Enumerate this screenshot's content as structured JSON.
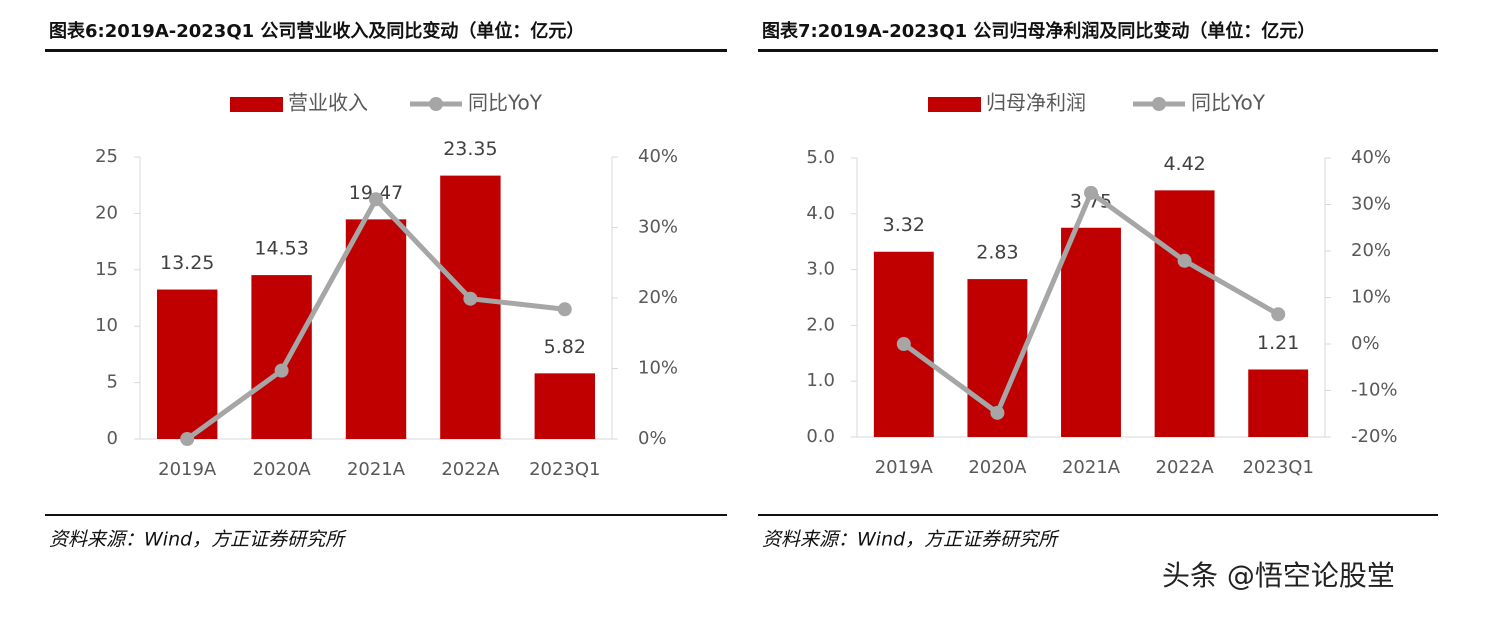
{
  "chart_data": [
    {
      "type": "bar",
      "title": "图表6:2019A-2023Q1 公司营业收入及同比变动（单位：亿元）",
      "source": "资料来源：Wind，方正证券研究所",
      "categories": [
        "2019A",
        "2020A",
        "2021A",
        "2022A",
        "2023Q1"
      ],
      "series": [
        {
          "name": "营业收入",
          "color": "#c00000",
          "values": [
            13.25,
            14.53,
            19.47,
            23.35,
            5.82
          ]
        },
        {
          "name": "同比YoY",
          "color": "#a6a6a6",
          "axis": "y2",
          "values": [
            0,
            9.7,
            34.0,
            19.9,
            18.4
          ]
        }
      ],
      "ylim": [
        0,
        25
      ],
      "yticks": [
        0,
        5,
        10,
        15,
        20,
        25
      ],
      "y2lim": [
        0,
        40
      ],
      "y2ticks": [
        {
          "value": 0,
          "label": "0%"
        },
        {
          "value": 10,
          "label": "10%"
        },
        {
          "value": 20,
          "label": "20%"
        },
        {
          "value": 30,
          "label": "30%"
        },
        {
          "value": 40,
          "label": "40%"
        }
      ]
    },
    {
      "type": "bar",
      "title": "图表7:2019A-2023Q1 公司归母净利润及同比变动（单位：亿元）",
      "source": "资料来源：Wind，方正证券研究所",
      "categories": [
        "2019A",
        "2020A",
        "2021A",
        "2022A",
        "2023Q1"
      ],
      "series": [
        {
          "name": "归母净利润",
          "color": "#c00000",
          "values": [
            3.32,
            2.83,
            3.75,
            4.42,
            1.21
          ]
        },
        {
          "name": "同比YoY",
          "color": "#a6a6a6",
          "axis": "y2",
          "values": [
            0,
            -14.8,
            32.5,
            17.9,
            6.4
          ]
        }
      ],
      "ylim": [
        0,
        5
      ],
      "yticks": [
        {
          "value": 0,
          "label": "0.0"
        },
        {
          "value": 1,
          "label": "1.0"
        },
        {
          "value": 2,
          "label": "2.0"
        },
        {
          "value": 3,
          "label": "3.0"
        },
        {
          "value": 4,
          "label": "4.0"
        },
        {
          "value": 5,
          "label": "5.0"
        }
      ],
      "y2lim": [
        -20,
        40
      ],
      "y2ticks": [
        {
          "value": -20,
          "label": "-20%"
        },
        {
          "value": -10,
          "label": "-10%"
        },
        {
          "value": 0,
          "label": "0%"
        },
        {
          "value": 10,
          "label": "10%"
        },
        {
          "value": 20,
          "label": "20%"
        },
        {
          "value": 30,
          "label": "30%"
        },
        {
          "value": 40,
          "label": "40%"
        }
      ]
    }
  ],
  "watermark": "头条 @悟空论股堂"
}
